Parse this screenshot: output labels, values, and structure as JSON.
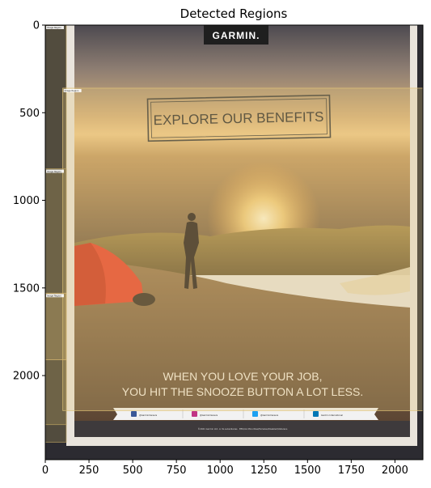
{
  "chart_data": {
    "type": "image",
    "title": "Detected Regions",
    "xlabel": "",
    "ylabel": "",
    "xlim": [
      0,
      2160
    ],
    "ylim": [
      2480,
      0
    ],
    "x_ticks": [
      0,
      250,
      500,
      750,
      1000,
      1250,
      1500,
      1750,
      2000
    ],
    "y_ticks": [
      0,
      500,
      1000,
      1500,
      2000
    ],
    "image_size": [
      2160,
      2480
    ],
    "regions": [
      {
        "x0": 0,
        "y0": 0,
        "x1": 120,
        "y1": 2380,
        "label": "Image Region",
        "color": "#b8a060"
      },
      {
        "x0": 100,
        "y0": 360,
        "x1": 2160,
        "y1": 2200,
        "label": "Image Region",
        "color": "#e2c479"
      },
      {
        "x0": 0,
        "y0": 820,
        "x1": 120,
        "y1": 2280,
        "label": "Image Region",
        "color": "#b8a060"
      },
      {
        "x0": 0,
        "y0": 1530,
        "x1": 120,
        "y1": 1910,
        "label": "Image Region",
        "color": "#d8b870"
      }
    ]
  },
  "poster": {
    "brand": "GARMIN.",
    "headline": "EXPLORE OUR BENEFITS",
    "tagline_line1": "WHEN YOU LOVE YOUR JOB,",
    "tagline_line2": "YOU HIT THE SNOOZE BUTTON A LOT LESS.",
    "social": [
      {
        "icon": "facebook-icon",
        "handle": "@GarminCareers",
        "color": "#3b5998"
      },
      {
        "icon": "instagram-icon",
        "handle": "@GarminCareers",
        "color": "#c13584"
      },
      {
        "icon": "twitter-icon",
        "handle": "@GarminCareers",
        "color": "#1da1f2"
      },
      {
        "icon": "linkedin-icon",
        "handle": "Garmin International",
        "color": "#0077b5"
      }
    ],
    "footer_text": "©2021 Garmin Ltd. or its subsidiaries · EEO/AA Minorities/Females/Disabled/Veterans"
  }
}
